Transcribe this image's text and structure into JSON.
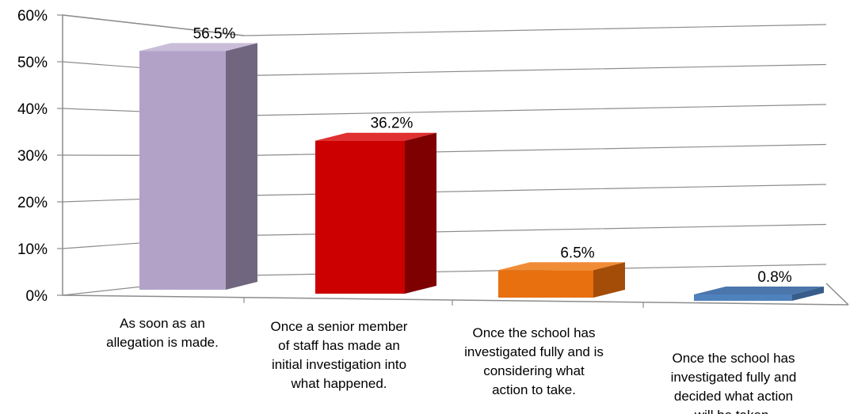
{
  "chart_data": {
    "type": "bar",
    "title": "",
    "xlabel": "",
    "ylabel": "",
    "categories": [
      [
        "As soon as an",
        "allegation is made."
      ],
      [
        "Once a senior member",
        "of staff has made an",
        "initial investigation into",
        "what happened."
      ],
      [
        "Once the school has",
        "investigated fully and is",
        "considering what",
        "action to take."
      ],
      [
        "Once the school has",
        "investigated fully and",
        "decided what action",
        "will be taken."
      ]
    ],
    "values": [
      56.5,
      36.2,
      6.5,
      0.8
    ],
    "value_labels": [
      "56.5%",
      "36.2%",
      "6.5%",
      "0.8%"
    ],
    "ylim": [
      0,
      60
    ],
    "yticks": [
      0,
      10,
      20,
      30,
      40,
      50,
      60
    ],
    "ytick_labels": [
      "0%",
      "10%",
      "20%",
      "30%",
      "40%",
      "50%",
      "60%"
    ],
    "grid": true,
    "legend": "none",
    "colors": [
      {
        "front": "#b3a2c8",
        "side": "#71667f",
        "top": "#c9bdd9"
      },
      {
        "front": "#cc0000",
        "side": "#7f0000",
        "top": "#e03030"
      },
      {
        "front": "#e8700f",
        "side": "#a34d08",
        "top": "#f08c35"
      },
      {
        "front": "#4f81bd",
        "side": "#385d8a",
        "top": "#4a76ac"
      }
    ]
  }
}
